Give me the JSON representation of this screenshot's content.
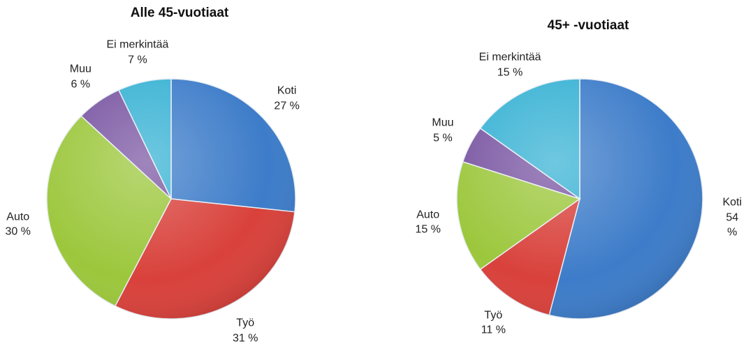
{
  "chart_data": [
    {
      "type": "pie",
      "title": "Alle 45-vuotiaat",
      "categories": [
        "Koti",
        "Työ",
        "Auto",
        "Muu",
        "Ei merkintää"
      ],
      "values": [
        27,
        31,
        30,
        6,
        7
      ],
      "value_labels": [
        "27 %",
        "31 %",
        "30 %",
        "6 %",
        "7 %"
      ],
      "colors": [
        "#3d7cc9",
        "#d9413b",
        "#9cc73c",
        "#7a56a2",
        "#38b2d4"
      ]
    },
    {
      "type": "pie",
      "title": "45+ -vuotiaat",
      "categories": [
        "Koti",
        "Työ",
        "Auto",
        "Muu",
        "Ei merkintää"
      ],
      "values": [
        54,
        11,
        15,
        5,
        15
      ],
      "value_labels": [
        "54 %",
        "11 %",
        "15 %",
        "5 %",
        "15 %"
      ],
      "colors": [
        "#3d7cc9",
        "#d9413b",
        "#9cc73c",
        "#7a56a2",
        "#38b2d4"
      ]
    }
  ]
}
